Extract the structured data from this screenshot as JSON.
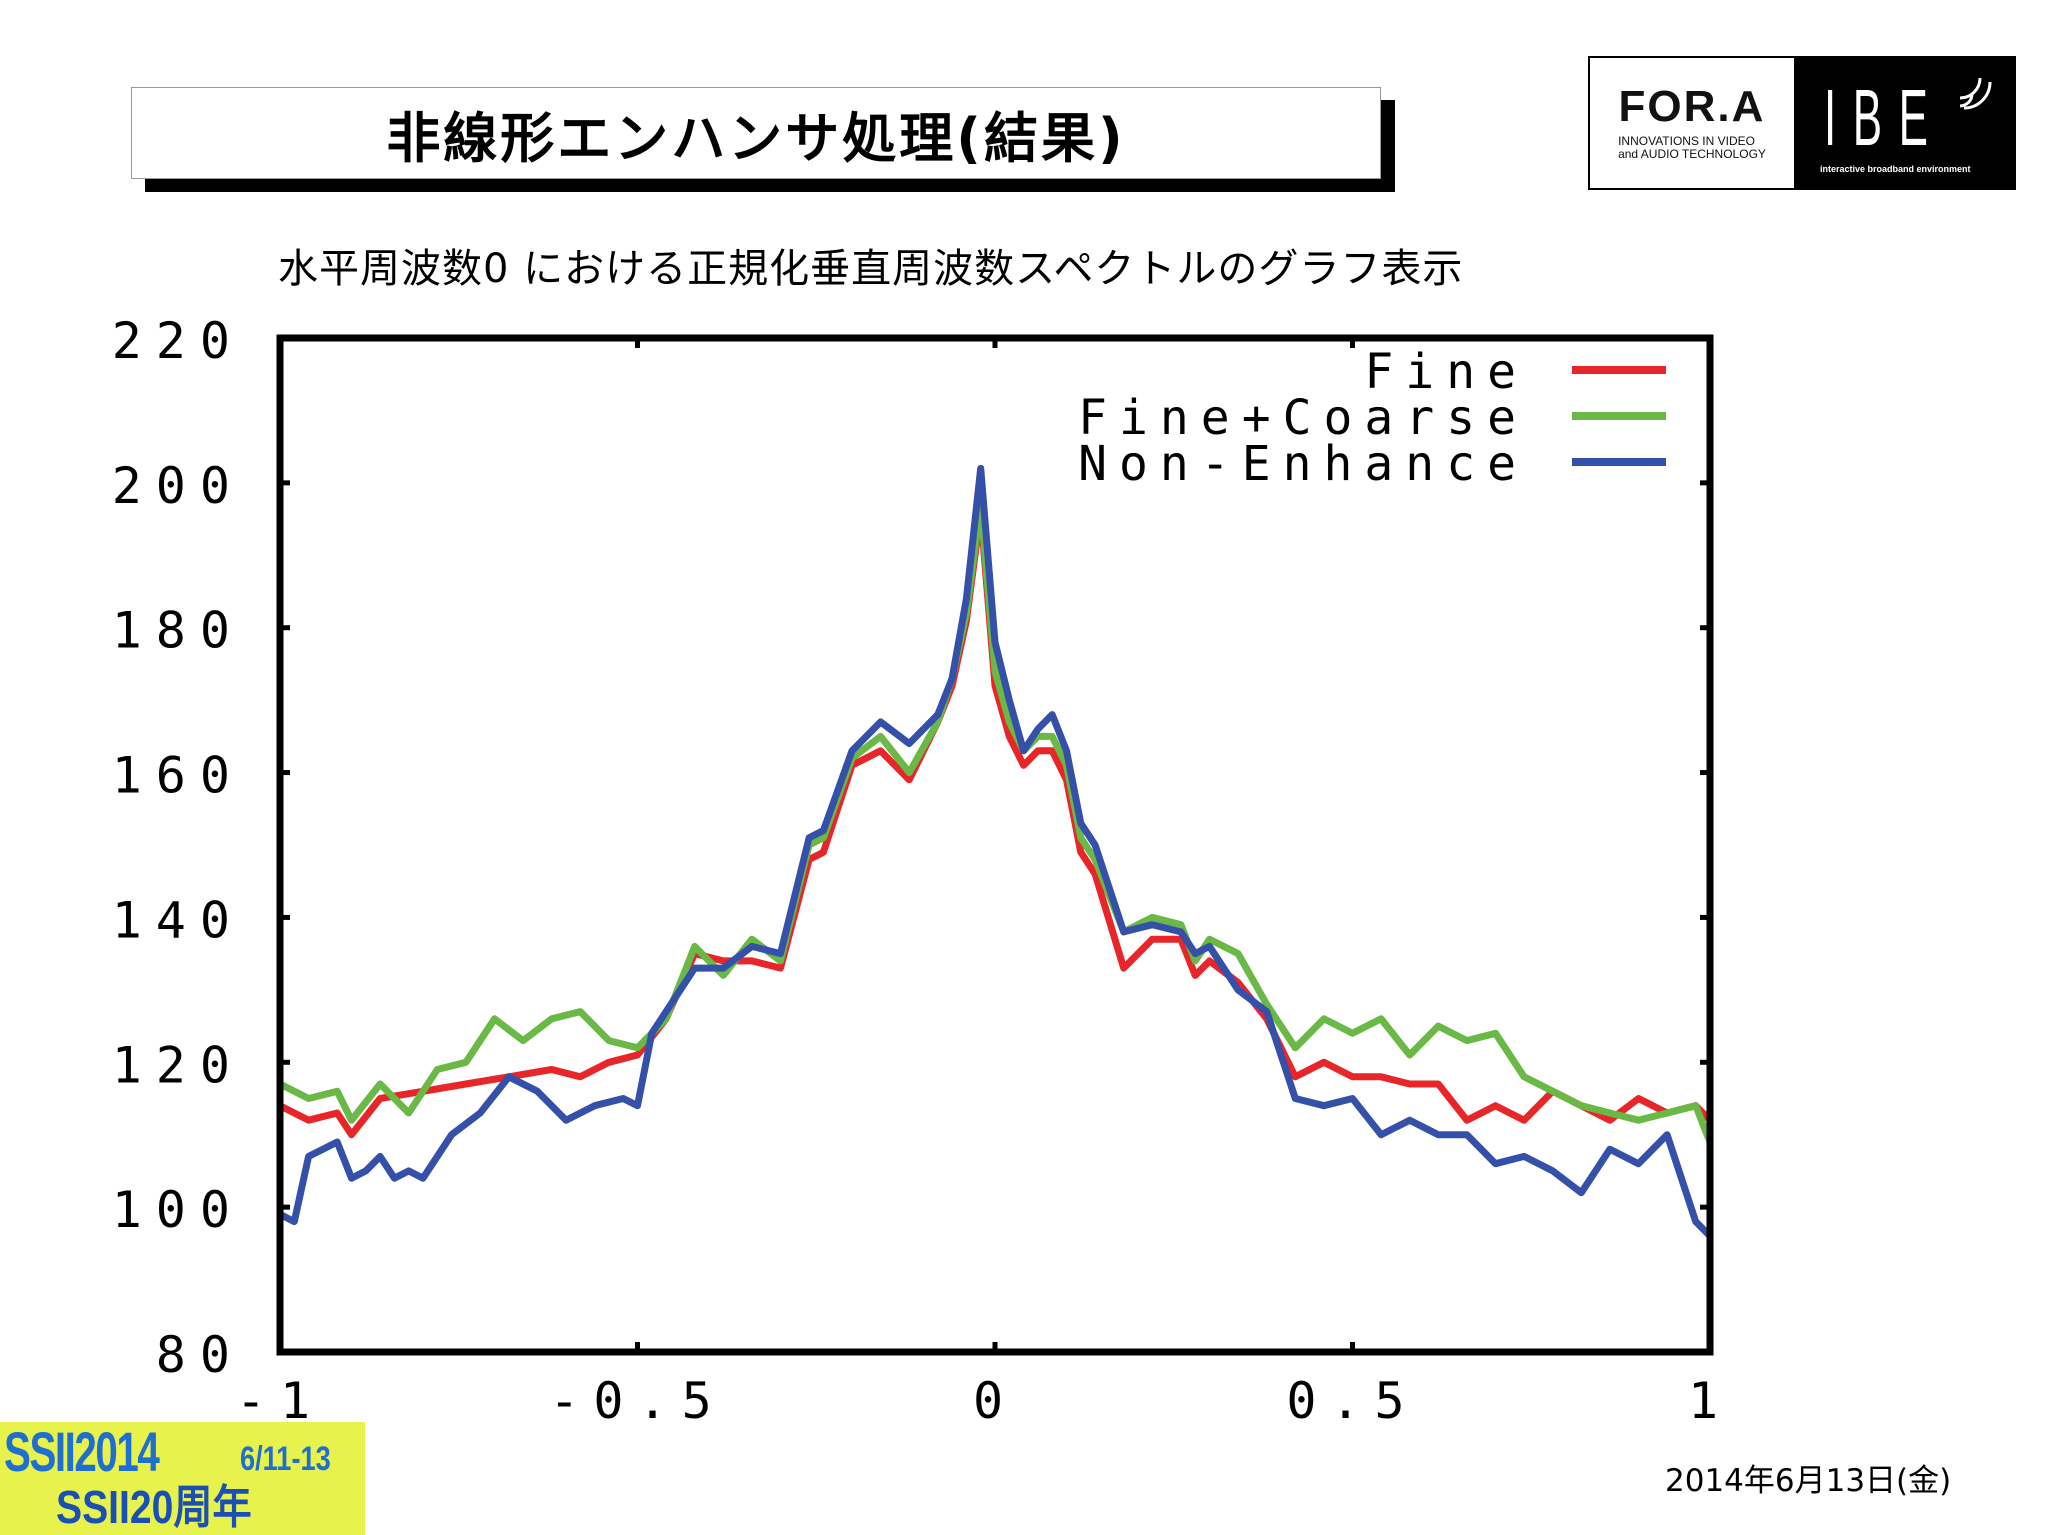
{
  "header": {
    "title": "非線形エンハンサ処理(結果)",
    "logo_fora": "FOR.A",
    "logo_fora_tagline_1": "INNOVATIONS IN VIDEO",
    "logo_fora_tagline_2": "and AUDIO TECHNOLOGY",
    "logo_ibe": "IBE",
    "logo_ibe_sub": "interactive broadband environment"
  },
  "subtitle": "水平周波数0 における正規化垂直周波数スペクトルのグラフ表示",
  "footer": {
    "date": "2014年6月13日(金)",
    "event_name": "SSII2014",
    "event_dates": "6/11-13",
    "event_anniversary": "SSII20周年"
  },
  "colors": {
    "fine": "#e8262a",
    "fine_coarse": "#6ab845",
    "non_enhance": "#3550a8",
    "ssii_bg": "#e8f24c",
    "ssii_text": "#1e6fd0"
  },
  "chart_data": {
    "type": "line",
    "title": "",
    "xlabel": "",
    "ylabel": "",
    "xlim": [
      -1,
      1
    ],
    "ylim": [
      80,
      220
    ],
    "xticks": [
      -1,
      -0.5,
      0,
      0.5,
      1
    ],
    "xtick_labels": [
      "-1",
      "-0.5",
      "0",
      "0.5",
      "1"
    ],
    "yticks": [
      80,
      100,
      120,
      140,
      160,
      180,
      200,
      220
    ],
    "ytick_labels": [
      "80",
      "100",
      "120",
      "140",
      "160",
      "180",
      "200",
      "220"
    ],
    "legend_position": "top-right",
    "series": [
      {
        "name": "Fine",
        "color": "#e8262a",
        "x": [
          -1,
          -0.96,
          -0.92,
          -0.9,
          -0.86,
          -0.8,
          -0.74,
          -0.68,
          -0.62,
          -0.58,
          -0.54,
          -0.5,
          -0.46,
          -0.42,
          -0.38,
          -0.34,
          -0.3,
          -0.26,
          -0.24,
          -0.2,
          -0.16,
          -0.12,
          -0.08,
          -0.06,
          -0.04,
          -0.02,
          0,
          0.02,
          0.04,
          0.06,
          0.08,
          0.1,
          0.12,
          0.14,
          0.18,
          0.22,
          0.26,
          0.28,
          0.3,
          0.34,
          0.38,
          0.42,
          0.46,
          0.5,
          0.54,
          0.58,
          0.62,
          0.66,
          0.7,
          0.74,
          0.78,
          0.82,
          0.86,
          0.9,
          0.94,
          0.98,
          1
        ],
        "y": [
          114,
          112,
          113,
          110,
          115,
          116,
          117,
          118,
          119,
          118,
          120,
          121,
          126,
          135,
          134,
          134,
          133,
          148,
          149,
          161,
          163,
          159,
          167,
          172,
          181,
          196,
          172,
          165,
          161,
          163,
          163,
          159,
          149,
          146,
          133,
          137,
          137,
          132,
          134,
          131,
          126,
          118,
          120,
          118,
          118,
          117,
          117,
          112,
          114,
          112,
          116,
          114,
          112,
          115,
          113,
          114,
          112
        ]
      },
      {
        "name": "Fine+Coarse",
        "color": "#6ab845",
        "x": [
          -1,
          -0.96,
          -0.92,
          -0.9,
          -0.86,
          -0.82,
          -0.78,
          -0.74,
          -0.7,
          -0.66,
          -0.62,
          -0.58,
          -0.54,
          -0.5,
          -0.46,
          -0.42,
          -0.38,
          -0.34,
          -0.3,
          -0.26,
          -0.24,
          -0.2,
          -0.16,
          -0.12,
          -0.08,
          -0.06,
          -0.04,
          -0.02,
          0,
          0.02,
          0.04,
          0.06,
          0.08,
          0.1,
          0.12,
          0.14,
          0.18,
          0.22,
          0.26,
          0.28,
          0.3,
          0.34,
          0.38,
          0.42,
          0.46,
          0.5,
          0.54,
          0.58,
          0.62,
          0.66,
          0.7,
          0.74,
          0.78,
          0.82,
          0.86,
          0.9,
          0.94,
          0.98,
          1
        ],
        "y": [
          117,
          115,
          116,
          112,
          117,
          113,
          119,
          120,
          126,
          123,
          126,
          127,
          123,
          122,
          126,
          136,
          132,
          137,
          134,
          150,
          151,
          162,
          165,
          160,
          167,
          173,
          182,
          197,
          174,
          167,
          163,
          165,
          165,
          161,
          151,
          148,
          138,
          140,
          139,
          134,
          137,
          135,
          128,
          122,
          126,
          124,
          126,
          121,
          125,
          123,
          124,
          118,
          116,
          114,
          113,
          112,
          113,
          114,
          109
        ]
      },
      {
        "name": "Non-Enhance",
        "color": "#3550a8",
        "x": [
          -1,
          -0.98,
          -0.96,
          -0.94,
          -0.92,
          -0.9,
          -0.88,
          -0.86,
          -0.84,
          -0.82,
          -0.8,
          -0.76,
          -0.72,
          -0.68,
          -0.64,
          -0.6,
          -0.56,
          -0.52,
          -0.5,
          -0.48,
          -0.46,
          -0.42,
          -0.38,
          -0.34,
          -0.3,
          -0.26,
          -0.24,
          -0.2,
          -0.16,
          -0.12,
          -0.08,
          -0.06,
          -0.04,
          -0.02,
          0,
          0.02,
          0.04,
          0.06,
          0.08,
          0.1,
          0.12,
          0.14,
          0.18,
          0.22,
          0.26,
          0.28,
          0.3,
          0.34,
          0.38,
          0.42,
          0.46,
          0.5,
          0.54,
          0.58,
          0.62,
          0.66,
          0.7,
          0.74,
          0.78,
          0.82,
          0.86,
          0.9,
          0.94,
          0.98,
          1
        ],
        "y": [
          99,
          98,
          107,
          108,
          109,
          104,
          105,
          107,
          104,
          105,
          104,
          110,
          113,
          118,
          116,
          112,
          114,
          115,
          114,
          124,
          127,
          133,
          133,
          136,
          135,
          151,
          152,
          163,
          167,
          164,
          168,
          173,
          184,
          202,
          178,
          170,
          163,
          166,
          168,
          163,
          153,
          150,
          138,
          139,
          138,
          135,
          136,
          130,
          127,
          115,
          114,
          115,
          110,
          112,
          110,
          110,
          106,
          107,
          105,
          102,
          108,
          106,
          110,
          98,
          96
        ]
      }
    ]
  }
}
